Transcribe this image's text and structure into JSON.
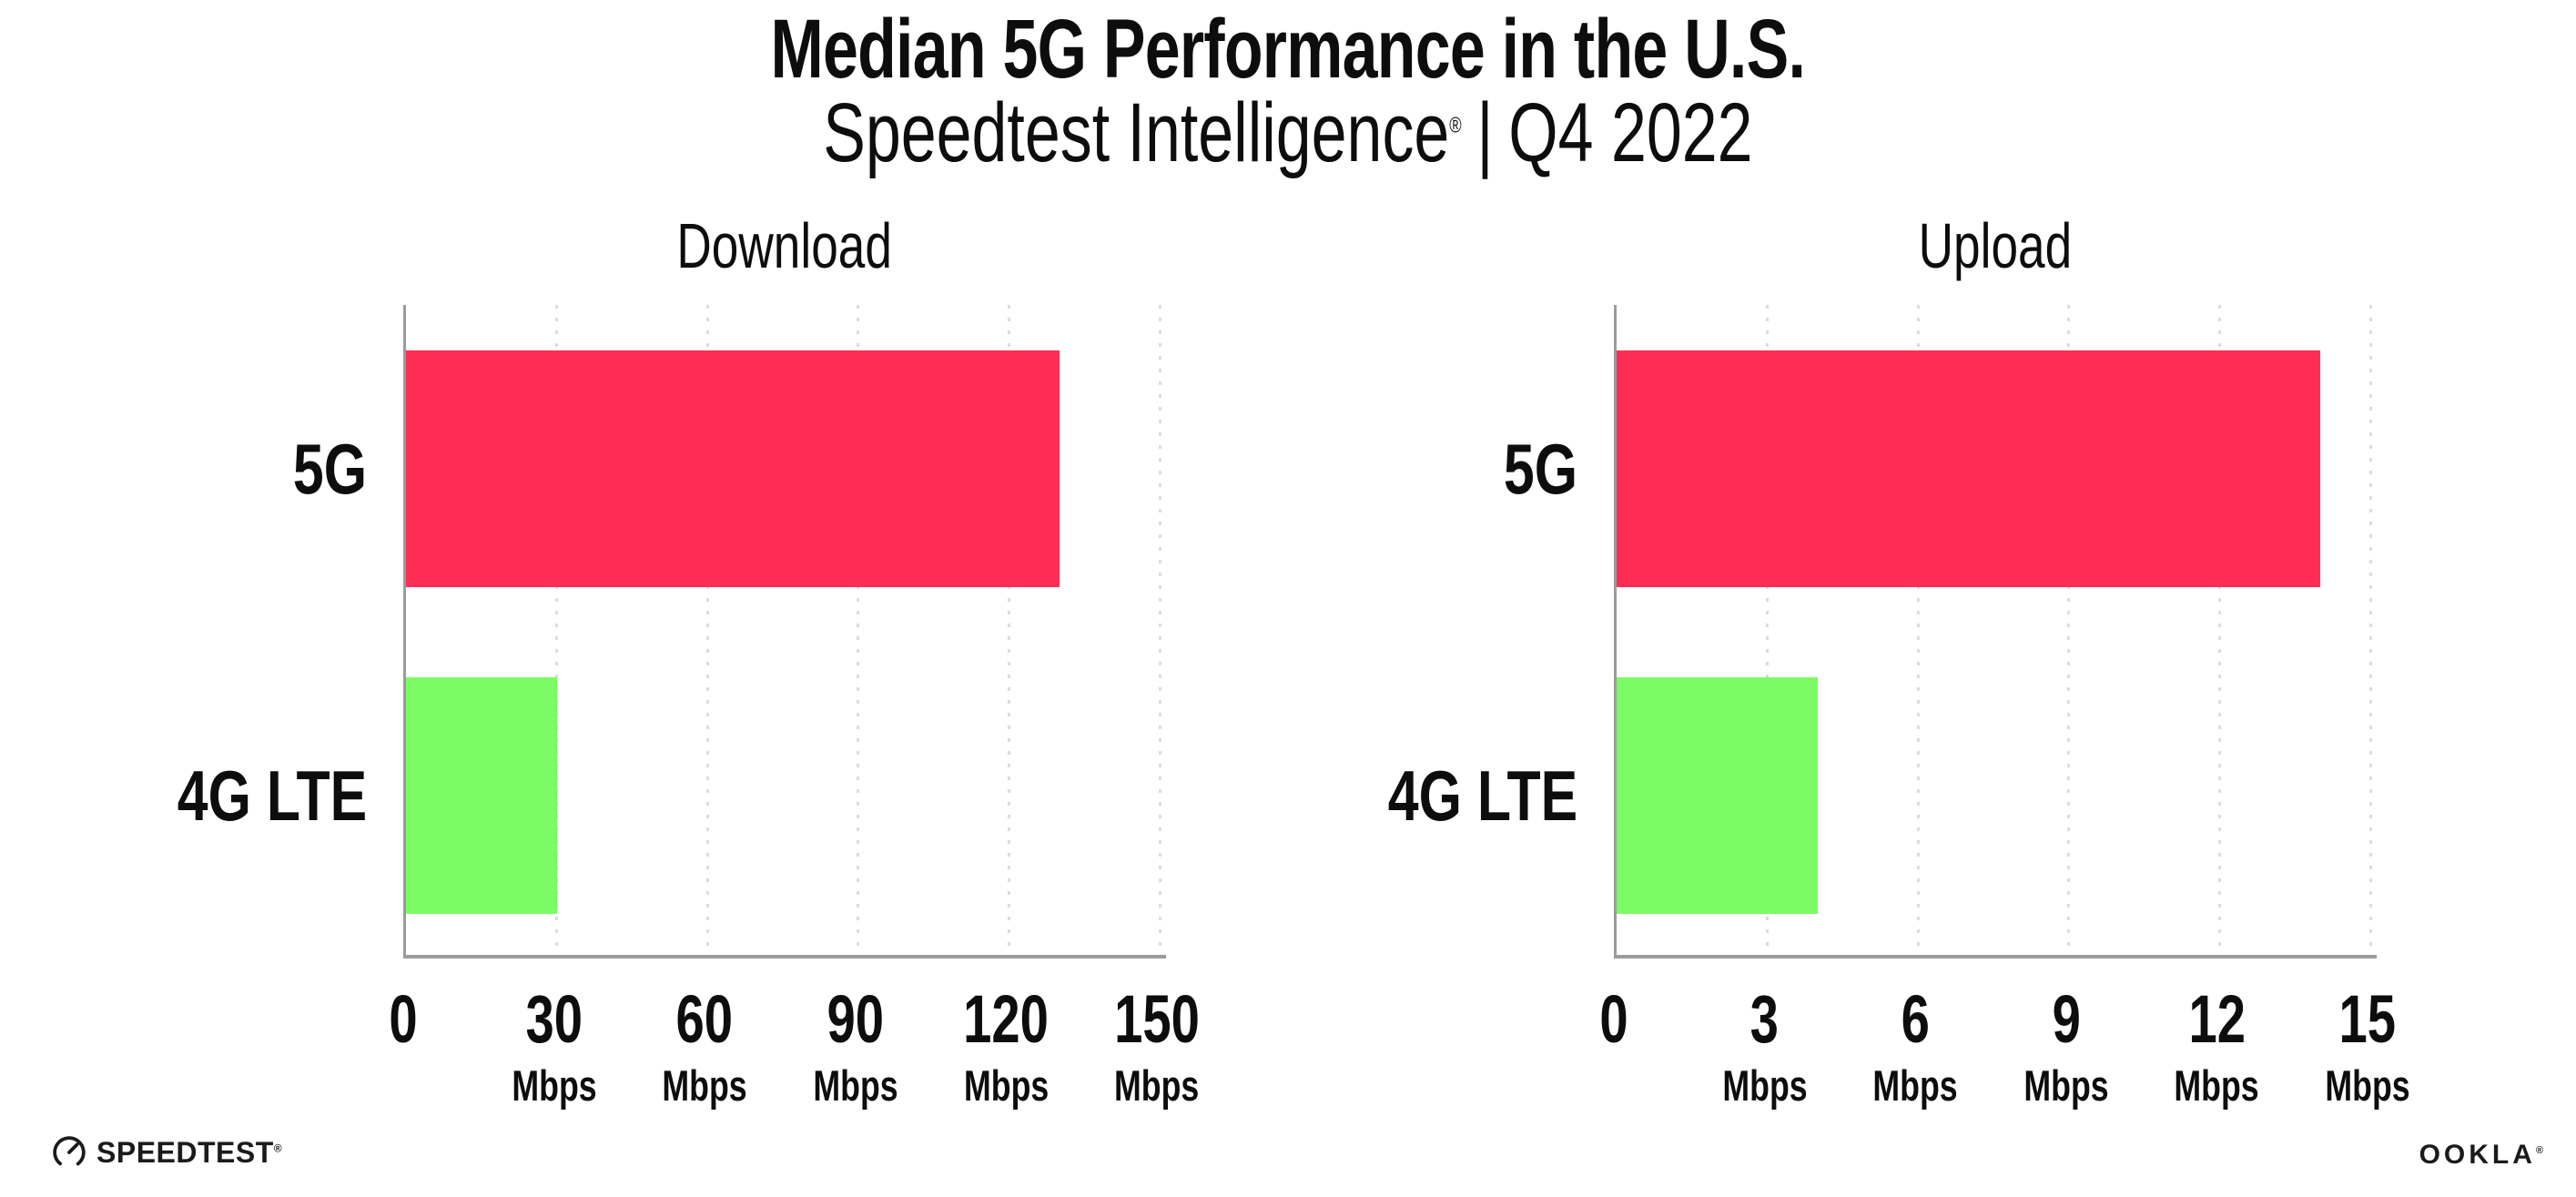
{
  "page": {
    "background": "#FFFFFF"
  },
  "header": {
    "title": "Median 5G Performance in the U.S.",
    "subtitle_brand": "Speedtest Intelligence",
    "subtitle_mark": "®",
    "subtitle_divider": "|",
    "subtitle_period": "Q4 2022"
  },
  "colors": {
    "bar_5g": "#FF2D55",
    "bar_4g_lte": "#7CFC64",
    "axis_line": "#9B9B9B",
    "gridline": "#D9DCE7",
    "text": "#0D0D0D"
  },
  "chart_data": [
    {
      "type": "bar",
      "orientation": "horizontal",
      "title": "Download",
      "categories": [
        "5G",
        "4G LTE"
      ],
      "values": [
        130,
        30
      ],
      "unit": "Mbps",
      "xlabel": "",
      "ylabel": "",
      "xlim": [
        0,
        150
      ],
      "xticks": [
        0,
        30,
        60,
        90,
        120,
        150
      ],
      "bar_colors": [
        "#FF2D55",
        "#7CFC64"
      ],
      "grid": "dotted-vertical-gridlines",
      "legend": "none"
    },
    {
      "type": "bar",
      "orientation": "horizontal",
      "title": "Upload",
      "categories": [
        "5G",
        "4G LTE"
      ],
      "values": [
        14,
        4
      ],
      "unit": "Mbps",
      "xlabel": "",
      "ylabel": "",
      "xlim": [
        0,
        15
      ],
      "xticks": [
        0,
        3,
        6,
        9,
        12,
        15
      ],
      "bar_colors": [
        "#FF2D55",
        "#7CFC64"
      ],
      "grid": "dotted-vertical-gridlines",
      "legend": "none"
    }
  ],
  "footer": {
    "speedtest_text": "SPEEDTEST",
    "speedtest_mark": "®",
    "speedtest_icon": "speedtest-gauge-icon",
    "ookla_text": "OOKLA",
    "ookla_mark": "®"
  }
}
